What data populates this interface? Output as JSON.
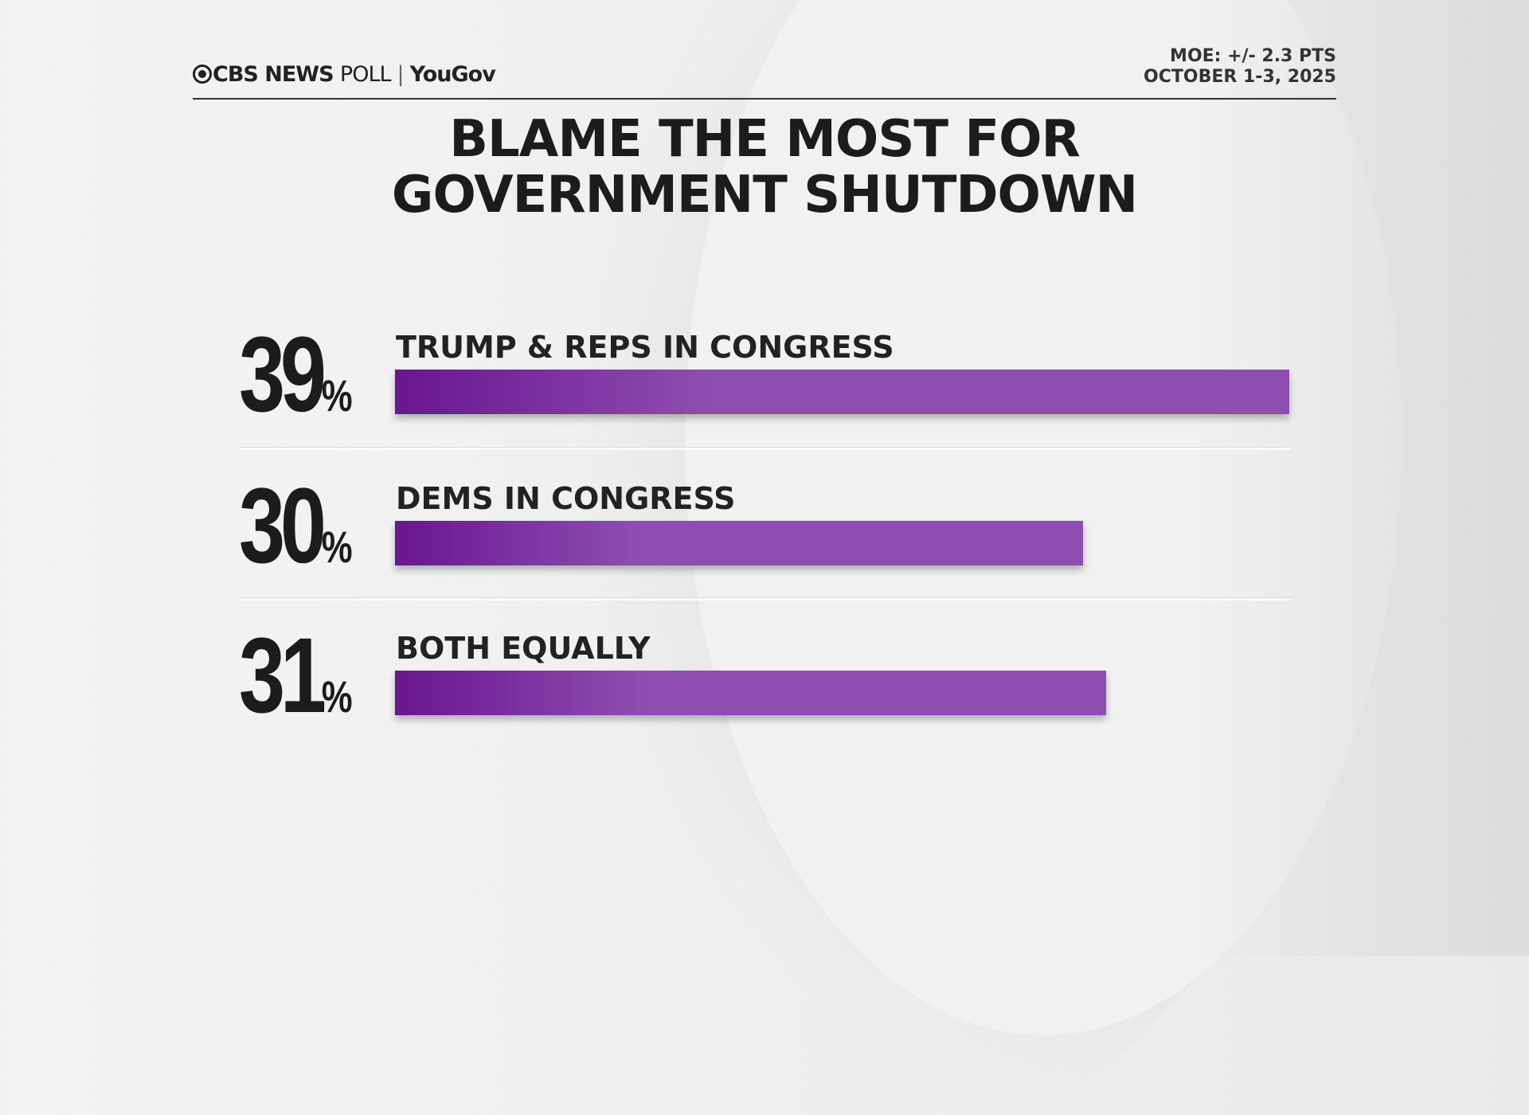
{
  "header": {
    "brand": "CBS NEWS",
    "brand_suffix": "POLL",
    "partner": "YouGov",
    "moe": "MOE: +/- 2.3 PTS",
    "dates": "OCTOBER 1-3, 2025"
  },
  "chart_data": {
    "type": "bar",
    "orientation": "horizontal",
    "title_line1": "BLAME THE MOST FOR",
    "title_line2": "GOVERNMENT SHUTDOWN",
    "categories": [
      "TRUMP & REPS IN CONGRESS",
      "DEMS IN CONGRESS",
      "BOTH EQUALLY"
    ],
    "values": [
      39,
      30,
      31
    ],
    "value_labels": [
      "39",
      "30",
      "31"
    ],
    "unit": "%",
    "bar_color": "#8e4db0",
    "bar_color_start": "#6a1690"
  }
}
